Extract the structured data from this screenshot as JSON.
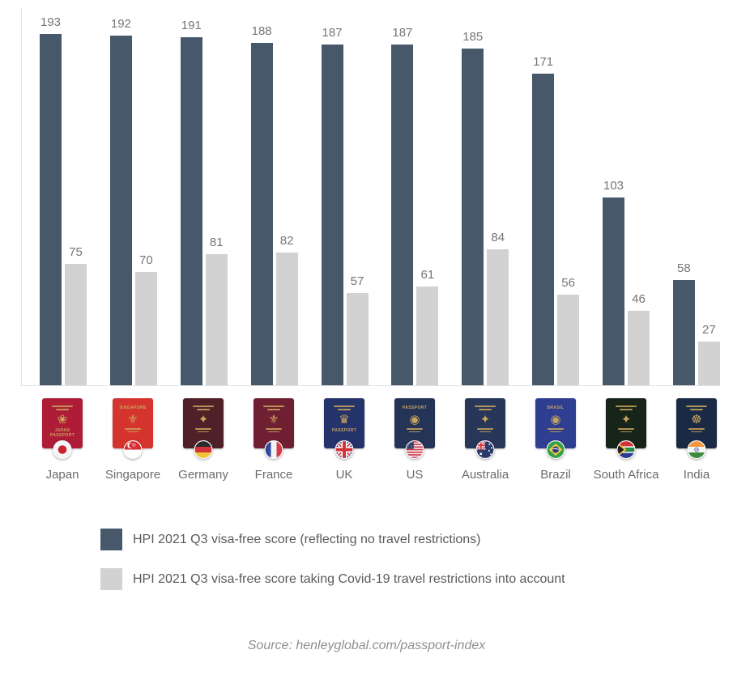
{
  "chart_data": {
    "type": "bar",
    "title": "",
    "categories": [
      "Japan",
      "Singapore",
      "Germany",
      "France",
      "UK",
      "US",
      "Australia",
      "Brazil",
      "South Africa",
      "India"
    ],
    "series": [
      {
        "name": "HPI 2021 Q3 visa-free score (reflecting no travel restrictions)",
        "color": "#46586a",
        "values": [
          193,
          192,
          191,
          188,
          187,
          187,
          185,
          171,
          103,
          58
        ]
      },
      {
        "name": "HPI 2021 Q3 visa-free score taking Covid-19 travel restrictions into account",
        "color": "#d2d2d2",
        "values": [
          75,
          70,
          81,
          82,
          57,
          61,
          84,
          56,
          46,
          27
        ]
      }
    ],
    "value_labels": true,
    "grid": false,
    "legend_position": "bottom-left",
    "xlabel": "",
    "ylabel": ""
  },
  "passports": [
    {
      "country": "Japan",
      "flag": "japan",
      "cover": "#ae1c37",
      "title_top": "",
      "title_bottom": "JAPAN PASSPORT"
    },
    {
      "country": "Singapore",
      "flag": "singapore",
      "cover": "#d5342e",
      "title_top": "SINGAPORE",
      "title_bottom": ""
    },
    {
      "country": "Germany",
      "flag": "germany",
      "cover": "#4f2028",
      "title_top": "",
      "title_bottom": ""
    },
    {
      "country": "France",
      "flag": "france",
      "cover": "#6e2032",
      "title_top": "",
      "title_bottom": ""
    },
    {
      "country": "UK",
      "flag": "uk",
      "cover": "#25336b",
      "title_top": "",
      "title_bottom": "PASSPORT"
    },
    {
      "country": "US",
      "flag": "us",
      "cover": "#243457",
      "title_top": "PASSPORT",
      "title_bottom": ""
    },
    {
      "country": "Australia",
      "flag": "australia",
      "cover": "#273659",
      "title_top": "",
      "title_bottom": ""
    },
    {
      "country": "Brazil",
      "flag": "brazil",
      "cover": "#2e3e90",
      "title_top": "BRASIL",
      "title_bottom": ""
    },
    {
      "country": "South Africa",
      "flag": "south-africa",
      "cover": "#162419",
      "title_top": "",
      "title_bottom": ""
    },
    {
      "country": "India",
      "flag": "india",
      "cover": "#1b2a44",
      "title_top": "",
      "title_bottom": ""
    }
  ],
  "source": "Source: henleyglobal.com/passport-index",
  "colors": {
    "bar_dark": "#46586a",
    "bar_gray": "#d2d2d2",
    "value_label": "#757575",
    "country_label": "#6b6b6b",
    "legend_text": "#5a5a5a",
    "source_text": "#8f8f8f",
    "axis_line": "#e2e2e2",
    "passport_gold": "#c9a45a"
  }
}
